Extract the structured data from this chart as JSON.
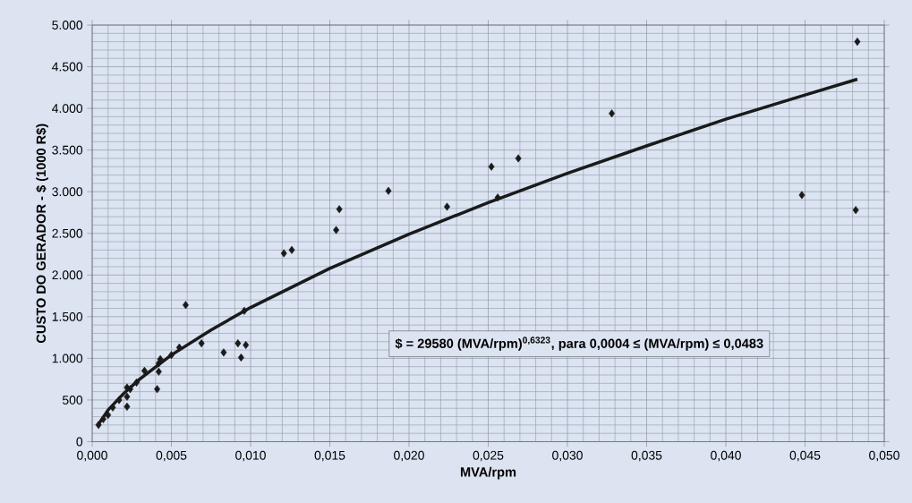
{
  "chart_data": {
    "type": "scatter",
    "xlabel": "MVA/rpm",
    "ylabel": "CUSTO DO GERADOR - $ (1000 R$)",
    "series": [
      {
        "color": "#1a1a1a",
        "marker": "diamond",
        "x": [
          0.0004,
          0.0007,
          0.001,
          0.0013,
          0.0017,
          0.0022,
          0.0022,
          0.0022,
          0.0024,
          0.0028,
          0.0033,
          0.0041,
          0.0042,
          0.0042,
          0.0043,
          0.005,
          0.0055,
          0.0059,
          0.0069,
          0.0083,
          0.0092,
          0.0094,
          0.0096,
          0.0097,
          0.0121,
          0.0126,
          0.0154,
          0.0156,
          0.0187,
          0.0224,
          0.0252,
          0.0256,
          0.0269,
          0.0328,
          0.0448,
          0.0482,
          0.0483
        ],
        "values": [
          200,
          270,
          320,
          410,
          500,
          650,
          540,
          420,
          630,
          710,
          850,
          630,
          840,
          940,
          990,
          1040,
          1130,
          1640,
          1180,
          1070,
          1180,
          1010,
          1570,
          1160,
          2260,
          2300,
          2540,
          2790,
          3010,
          2820,
          3300,
          2930,
          3400,
          3940,
          2960,
          2780,
          4800
        ]
      },
      {
        "type": "line",
        "color": "#1a1a1a",
        "marker": "none",
        "line_style": "solid",
        "x": [
          0.0004,
          0.001,
          0.002,
          0.003,
          0.005,
          0.0075,
          0.01,
          0.015,
          0.02,
          0.025,
          0.03,
          0.035,
          0.04,
          0.045,
          0.0483
        ],
        "values": [
          210,
          380,
          580,
          750,
          1040,
          1340,
          1610,
          2080,
          2490,
          2870,
          3220,
          3550,
          3870,
          4160,
          4350
        ]
      }
    ],
    "xlim": [
      0,
      0.05
    ],
    "ylim": [
      0,
      5000
    ],
    "xticks": [
      {
        "value": 0,
        "label": "0,000"
      },
      {
        "value": 0.005,
        "label": "0,005"
      },
      {
        "value": 0.01,
        "label": "0,010"
      },
      {
        "value": 0.015,
        "label": "0,015"
      },
      {
        "value": 0.02,
        "label": "0,020"
      },
      {
        "value": 0.025,
        "label": "0,025"
      },
      {
        "value": 0.03,
        "label": "0,030"
      },
      {
        "value": 0.035,
        "label": "0,035"
      },
      {
        "value": 0.04,
        "label": "0,040"
      },
      {
        "value": 0.045,
        "label": "0,045"
      },
      {
        "value": 0.05,
        "label": "0,050"
      }
    ],
    "yticks": [
      0,
      500,
      {
        "value": 1000,
        "label": "1.000"
      },
      {
        "value": 1500,
        "label": "1.500"
      },
      {
        "value": 2000,
        "label": "2.000"
      },
      {
        "value": 2500,
        "label": "2.500"
      },
      {
        "value": 3000,
        "label": "3.000"
      },
      {
        "value": 3500,
        "label": "3.500"
      },
      {
        "value": 4000,
        "label": "4.000"
      },
      {
        "value": 4500,
        "label": "4.500"
      },
      {
        "value": 5000,
        "label": "5.000"
      }
    ],
    "grid": true,
    "annotations": [
      "$ = 29580 (MVA/rpm)$^{0,6323}$, para 0,0004 ≤ (MVA/rpm) ≤ 0,0483"
    ]
  }
}
